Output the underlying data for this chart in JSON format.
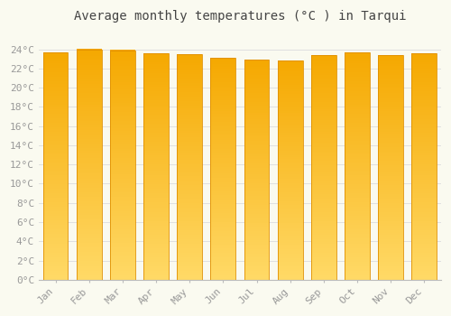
{
  "title": "Average monthly temperatures (°C ) in Tarqui",
  "months": [
    "Jan",
    "Feb",
    "Mar",
    "Apr",
    "May",
    "Jun",
    "Jul",
    "Aug",
    "Sep",
    "Oct",
    "Nov",
    "Dec"
  ],
  "values": [
    23.7,
    24.0,
    23.9,
    23.6,
    23.5,
    23.1,
    22.9,
    22.8,
    23.4,
    23.7,
    23.4,
    23.6
  ],
  "bar_color_top": "#F5A800",
  "bar_color_bottom": "#FFD966",
  "background_color": "#FAFAF0",
  "grid_color": "#E0E0E0",
  "ylim": [
    0,
    26
  ],
  "yticks": [
    0,
    2,
    4,
    6,
    8,
    10,
    12,
    14,
    16,
    18,
    20,
    22,
    24
  ],
  "title_fontsize": 10,
  "tick_fontsize": 8,
  "title_color": "#444444",
  "tick_color": "#999999",
  "bar_edge_color": "#E09000",
  "figsize": [
    5.0,
    3.5
  ],
  "dpi": 100
}
